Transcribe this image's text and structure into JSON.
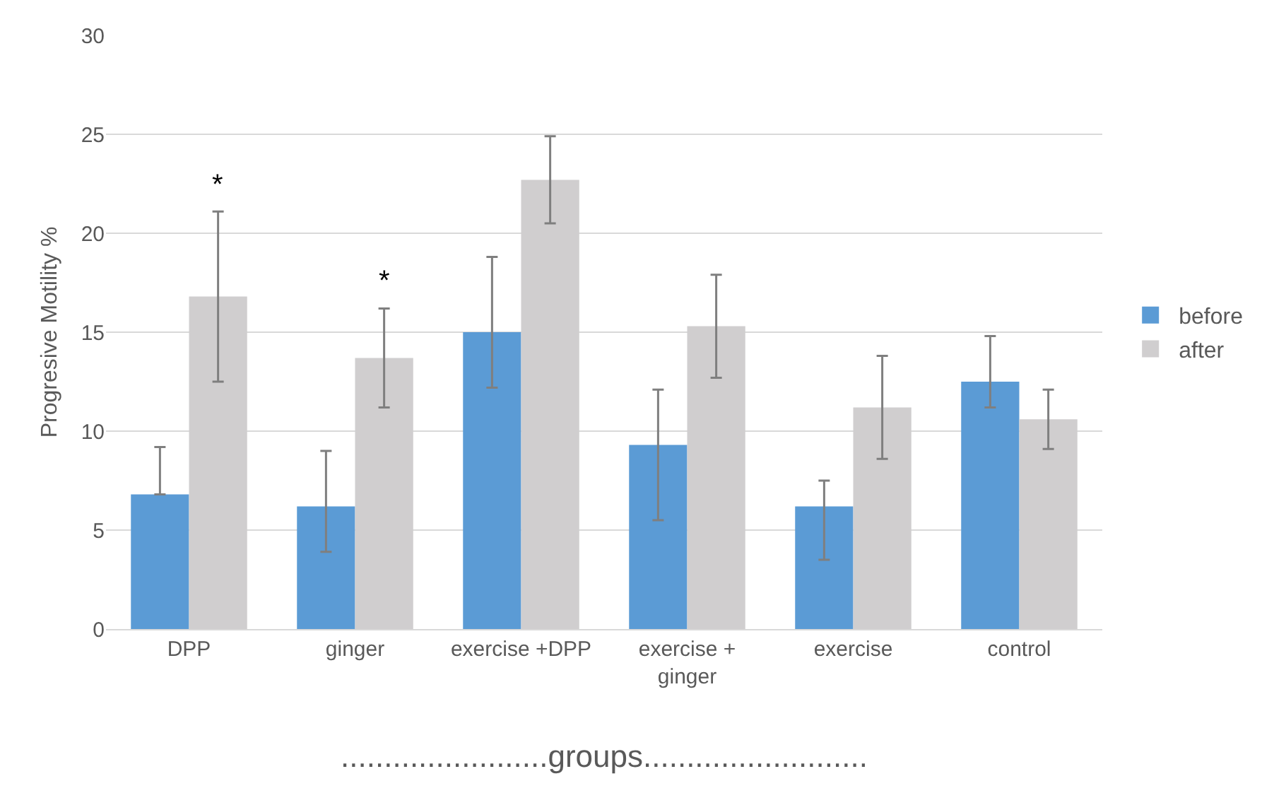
{
  "chart_data": {
    "type": "bar",
    "xlabel": "........................groups..........................",
    "ylabel": "Progresive Motility %",
    "categories": [
      "DPP",
      "ginger",
      "exercise +DPP",
      "exercise +\nginger",
      "exercise",
      "control"
    ],
    "series": [
      {
        "name": "before",
        "color": "#5b9bd5",
        "values": [
          6.8,
          6.2,
          15.0,
          9.3,
          6.2,
          12.5
        ],
        "errors": [
          [
            6.8,
            9.2
          ],
          [
            3.9,
            9.0
          ],
          [
            12.2,
            18.8
          ],
          [
            5.5,
            12.1
          ],
          [
            3.5,
            7.5
          ],
          [
            11.2,
            14.8
          ]
        ]
      },
      {
        "name": "after",
        "color": "#d0cecf",
        "values": [
          16.8,
          13.7,
          22.7,
          15.3,
          11.2,
          10.6
        ],
        "errors": [
          4.3,
          2.5,
          2.2,
          2.6,
          2.6,
          1.5
        ]
      }
    ],
    "annotations": [
      "*",
      "*"
    ],
    "ylim": [
      0,
      30
    ],
    "yticks": [
      0,
      5,
      10,
      15,
      20,
      25,
      30
    ],
    "grid": "y",
    "legend": "right"
  }
}
